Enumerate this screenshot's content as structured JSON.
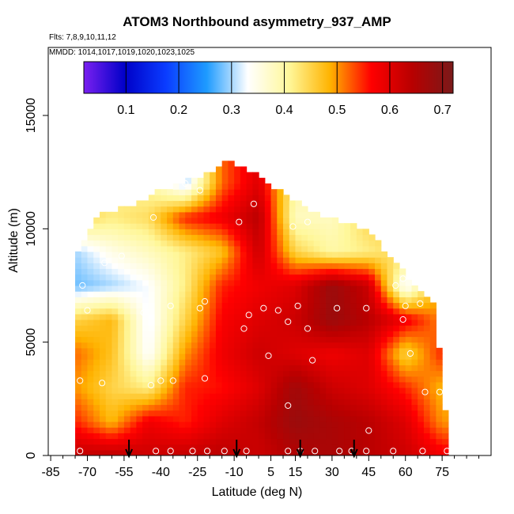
{
  "chart_data": {
    "type": "heatmap",
    "title": "ATOM3 Northbound asymmetry_937_AMP",
    "flights_label": "Flts: 7,8,9,10,11,12",
    "dates_label": "MMDD: 1014,1017,1019,1020,1023,1025",
    "xlabel": "Latitude (deg N)",
    "ylabel": "Altitude (m)",
    "xlim": [
      -86,
      95
    ],
    "ylim": [
      0,
      18000
    ],
    "x_ticks": [
      -85,
      -70,
      -55,
      -40,
      -25,
      -10,
      5,
      15,
      30,
      45,
      60,
      75
    ],
    "y_ticks": [
      0,
      5000,
      10000,
      15000
    ],
    "colorbar": {
      "range": [
        0.02,
        0.72
      ],
      "ticks": [
        0.1,
        0.2,
        0.3,
        0.4,
        0.5,
        0.6,
        0.7
      ],
      "tick_labels": [
        "0.1",
        "0.2",
        "0.3",
        "0.4",
        "0.5",
        "0.6",
        "0.7"
      ],
      "colors": [
        "#7a20f0",
        "#0000c8",
        "#0a3cff",
        "#1e9bff",
        "#ffffff",
        "#fff79a",
        "#ffb300",
        "#ff0000",
        "#b80000",
        "#7a1a1a"
      ]
    },
    "profile_arrows_lat": [
      -53,
      -9,
      17,
      39
    ],
    "field": {
      "lat_grid": [
        -75,
        -60,
        -45,
        -30,
        -15,
        0,
        15,
        30,
        45,
        60,
        75
      ],
      "alt_grid": [
        0,
        1500,
        3000,
        4500,
        6000,
        7500,
        9000,
        10500,
        12000
      ],
      "values": [
        [
          0.63,
          0.64,
          0.62,
          0.63,
          0.64,
          0.62,
          0.65,
          0.66,
          0.64,
          0.62,
          0.58
        ],
        [
          0.55,
          0.48,
          0.58,
          0.55,
          0.6,
          0.63,
          0.68,
          0.66,
          0.64,
          0.6,
          0.5
        ],
        [
          0.5,
          0.45,
          0.42,
          0.55,
          0.56,
          0.6,
          0.67,
          0.62,
          0.6,
          0.55,
          0.48
        ],
        [
          0.52,
          0.47,
          0.33,
          0.5,
          0.58,
          0.62,
          0.6,
          0.58,
          0.6,
          0.45,
          0.55
        ],
        [
          0.45,
          0.48,
          0.32,
          0.45,
          0.57,
          0.6,
          0.62,
          0.68,
          0.64,
          0.58,
          0.5
        ],
        [
          0.28,
          0.3,
          0.33,
          0.42,
          0.55,
          0.58,
          0.6,
          0.68,
          0.62,
          0.32,
          0.5
        ],
        [
          0.3,
          0.35,
          0.38,
          0.42,
          0.47,
          0.62,
          0.45,
          0.4,
          0.42,
          0.45,
          0.45
        ],
        [
          0.45,
          0.42,
          0.44,
          0.55,
          0.58,
          0.64,
          0.38,
          0.38,
          0.45,
          0.45,
          0.45
        ],
        [
          0.45,
          0.42,
          0.4,
          0.3,
          0.52,
          0.6,
          0.4,
          0.4,
          0.45,
          0.45,
          0.45
        ]
      ],
      "top_altitude_by_lat": [
        [
          -75,
          8500
        ],
        [
          -70,
          9800
        ],
        [
          -65,
          10500
        ],
        [
          -50,
          11000
        ],
        [
          -40,
          11600
        ],
        [
          -30,
          12000
        ],
        [
          -20,
          12400
        ],
        [
          -13,
          12800
        ],
        [
          -5,
          12600
        ],
        [
          2,
          12000
        ],
        [
          10,
          11500
        ],
        [
          20,
          10800
        ],
        [
          30,
          10300
        ],
        [
          45,
          9800
        ],
        [
          55,
          8500
        ],
        [
          65,
          7200
        ],
        [
          72,
          6500
        ],
        [
          78,
          0
        ]
      ]
    },
    "sample_points": [
      [
        -72,
        7500
      ],
      [
        -70,
        6400
      ],
      [
        -63,
        8500
      ],
      [
        -56,
        8800
      ],
      [
        -43,
        10500
      ],
      [
        -36,
        6600
      ],
      [
        -30,
        12000
      ],
      [
        -24,
        11700
      ],
      [
        -24,
        6500
      ],
      [
        -22,
        6800
      ],
      [
        -47,
        6300
      ],
      [
        -73,
        3300
      ],
      [
        -64,
        3200
      ],
      [
        -44,
        3100
      ],
      [
        -40,
        3300
      ],
      [
        -35,
        3300
      ],
      [
        -22,
        3400
      ],
      [
        -8,
        10300
      ],
      [
        -2,
        11100
      ],
      [
        -4,
        6200
      ],
      [
        -6,
        5600
      ],
      [
        2,
        6500
      ],
      [
        4,
        4400
      ],
      [
        8,
        6400
      ],
      [
        12,
        5900
      ],
      [
        16,
        6600
      ],
      [
        20,
        5600
      ],
      [
        22,
        4200
      ],
      [
        14,
        10100
      ],
      [
        20,
        10300
      ],
      [
        32,
        6500
      ],
      [
        44,
        6500
      ],
      [
        56,
        7500
      ],
      [
        59,
        7800
      ],
      [
        60,
        6600
      ],
      [
        59,
        6000
      ],
      [
        66,
        6700
      ],
      [
        62,
        4500
      ],
      [
        68,
        2800
      ],
      [
        74,
        2800
      ],
      [
        45,
        1100
      ],
      [
        12,
        2200
      ],
      [
        -73,
        200
      ],
      [
        -42,
        200
      ],
      [
        -36,
        200
      ],
      [
        -27,
        200
      ],
      [
        -21,
        200
      ],
      [
        -14,
        200
      ],
      [
        -5,
        200
      ],
      [
        12,
        200
      ],
      [
        17,
        200
      ],
      [
        23,
        200
      ],
      [
        33,
        200
      ],
      [
        38,
        200
      ],
      [
        44,
        200
      ],
      [
        55,
        200
      ],
      [
        67,
        200
      ],
      [
        77,
        200
      ]
    ]
  }
}
